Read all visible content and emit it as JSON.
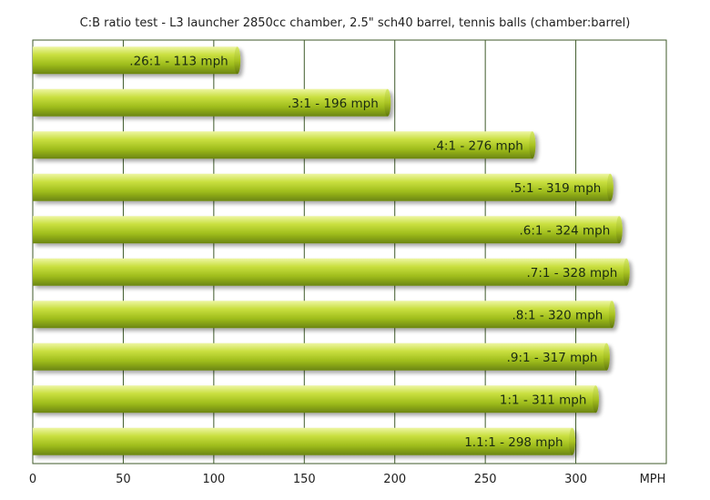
{
  "chart_data": {
    "type": "bar",
    "orientation": "horizontal",
    "title": "C:B ratio test - L3 launcher  2850cc chamber, 2.5\" sch40 barrel, tennis balls  (chamber:barrel)",
    "xlabel": "MPH",
    "xlim": [
      0,
      350
    ],
    "xticks": [
      0,
      50,
      100,
      150,
      200,
      250,
      300
    ],
    "grid": true,
    "bar_color": "#b8d22a",
    "categories": [
      ".26:1",
      ".3:1",
      ".4:1",
      ".5:1",
      ".6:1",
      ".7:1",
      ".8:1",
      ".9:1",
      "1:1",
      "1.1:1"
    ],
    "values": [
      113,
      196,
      276,
      319,
      324,
      328,
      320,
      317,
      311,
      298
    ],
    "data_labels": [
      ".26:1 - 113 mph",
      ".3:1 - 196 mph",
      ".4:1 - 276 mph",
      ".5:1 - 319 mph",
      ".6:1 - 324 mph",
      ".7:1 - 328 mph",
      ".8:1 - 320 mph",
      ".9:1 - 317 mph",
      "1:1 - 311 mph",
      "1.1:1 - 298 mph"
    ]
  }
}
